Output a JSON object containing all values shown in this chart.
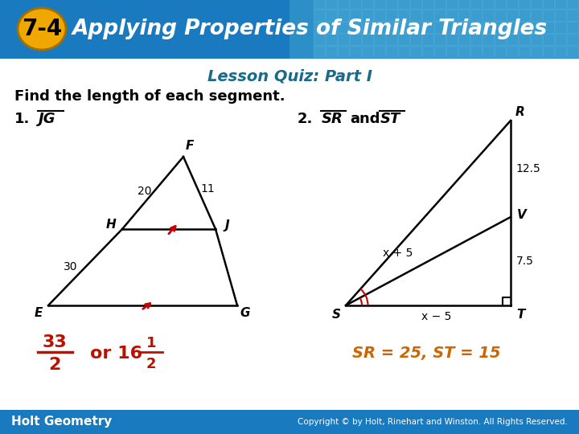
{
  "title_text": "Applying Properties of Similar Triangles",
  "title_number": "7-4",
  "title_bg_color": "#1a7abf",
  "title_number_bg": "#f0a800",
  "subtitle": "Lesson Quiz: Part I",
  "subtitle_color": "#1a6b8a",
  "find_text": "Find the length of each segment.",
  "q1_label": "1.",
  "q1_segment": "JG",
  "q2_label": "2.",
  "q2_segment_sr": "SR",
  "q2_segment_st": "ST",
  "q2_and": "and",
  "answer1_color": "#bb1100",
  "answer2_color": "#cc6600",
  "answer2_text": "SR = 25, ST = 15",
  "footer_text": "Holt Geometry",
  "footer_bg": "#1a7abf",
  "footer_copyright": "Copyright © by Holt, Rinehart and Winston. All Rights Reserved.",
  "bg_color": "#ffffff"
}
